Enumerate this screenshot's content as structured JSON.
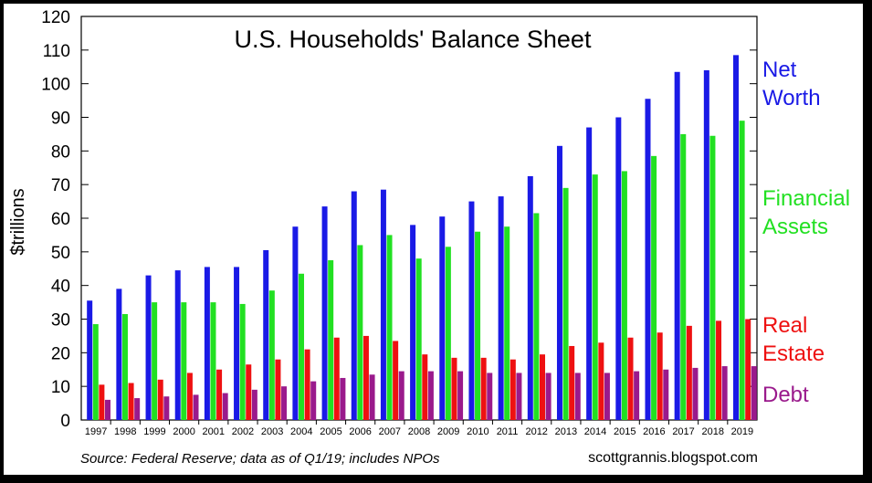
{
  "colors": {
    "net_worth": "#1a1ae6",
    "financial_assets": "#22e022",
    "real_estate": "#ee1111",
    "debt": "#9a1a8c"
  },
  "chart_data": {
    "type": "bar",
    "title": "U.S. Households' Balance Sheet",
    "ylabel": "$trillions",
    "xlabel": "",
    "ylim": [
      0,
      120
    ],
    "yticks": [
      0,
      10,
      20,
      30,
      40,
      50,
      60,
      70,
      80,
      90,
      100,
      110,
      120
    ],
    "grid": false,
    "legend_placement": "right",
    "categories": [
      "1997",
      "1998",
      "1999",
      "2000",
      "2001",
      "2002",
      "2003",
      "2004",
      "2005",
      "2006",
      "2007",
      "2008",
      "2009",
      "2010",
      "2011",
      "2012",
      "2013",
      "2014",
      "2015",
      "2016",
      "2017",
      "2018",
      "2019"
    ],
    "series": [
      {
        "key": "net_worth",
        "values": [
          35.5,
          39,
          43,
          44.5,
          45.5,
          45.5,
          50.5,
          57.5,
          63.5,
          68,
          68.5,
          58,
          60.5,
          65,
          66.5,
          72.5,
          81.5,
          87,
          90,
          95.5,
          103.5,
          104,
          108.5
        ]
      },
      {
        "key": "financial_assets",
        "values": [
          28.5,
          31.5,
          35,
          35,
          35,
          34.5,
          38.5,
          43.5,
          47.5,
          52,
          55,
          48,
          51.5,
          56,
          57.5,
          61.5,
          69,
          73,
          74,
          78.5,
          85,
          84.5,
          89
        ]
      },
      {
        "key": "real_estate",
        "values": [
          10.5,
          11,
          12,
          14,
          15,
          16.5,
          18,
          21,
          24.5,
          25,
          23.5,
          19.5,
          18.5,
          18.5,
          18,
          19.5,
          22,
          23,
          24.5,
          26,
          28,
          29.5,
          30
        ]
      },
      {
        "key": "debt",
        "values": [
          6,
          6.5,
          7,
          7.5,
          8,
          9,
          10,
          11.5,
          12.5,
          13.5,
          14.5,
          14.5,
          14.5,
          14,
          14,
          14,
          14,
          14,
          14.5,
          15,
          15.5,
          16,
          16
        ]
      }
    ],
    "legend": [
      {
        "key": "net_worth",
        "lines": [
          "Net",
          "Worth"
        ]
      },
      {
        "key": "financial_assets",
        "lines": [
          "Financial",
          "Assets"
        ]
      },
      {
        "key": "real_estate",
        "lines": [
          "Real",
          "Estate"
        ]
      },
      {
        "key": "debt",
        "lines": [
          "Debt"
        ]
      }
    ],
    "source": "Source: Federal Reserve; data as of Q1/19; includes NPOs",
    "credit": "scottgrannis.blogspot.com"
  }
}
